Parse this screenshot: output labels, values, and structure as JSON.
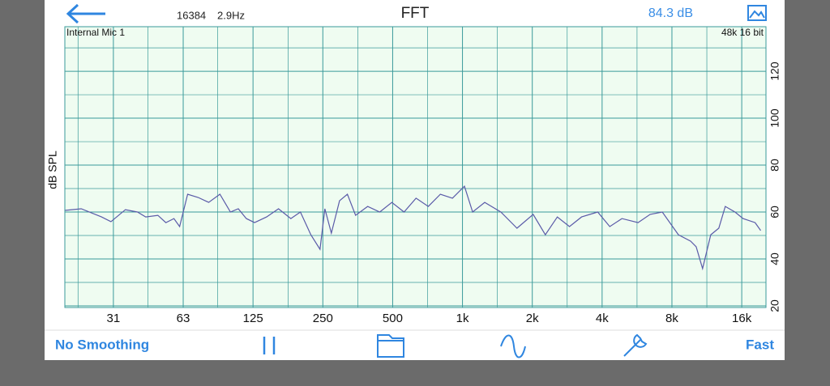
{
  "header": {
    "buffer_size": "16384",
    "resolution": "2.9Hz",
    "title": "FFT",
    "level": "84.3 dB"
  },
  "chart_data": {
    "type": "line",
    "input_label": "Internal Mic 1",
    "format_label": "48k 16 bit",
    "y_label": "dB SPL",
    "x_scale": "log",
    "grid": true,
    "x": [
      19.3,
      22.7,
      27.8,
      30.5,
      35.2,
      39.7,
      43.1,
      48.6,
      52.6,
      57.0,
      60.3,
      65.3,
      72.5,
      80.5,
      90.0,
      99.9,
      108,
      117,
      127,
      143,
      161,
      182,
      200,
      222,
      243,
      255,
      272,
      295,
      319,
      346,
      390,
      440,
      496,
      560,
      631,
      712,
      803,
      905,
      1020,
      1106,
      1247,
      1464,
      1718,
      2017,
      2276,
      2564,
      2893,
      3261,
      3828,
      4318,
      4869,
      5714,
      6446,
      7269,
      8534,
      9626,
      10180,
      10850,
      11760,
      12740,
      13590,
      14960,
      16200,
      18270,
      19320
    ],
    "series": [
      {
        "color": "#5a5aa8",
        "values": [
          60.7,
          61.4,
          57.9,
          55.9,
          61.0,
          60.0,
          57.9,
          58.6,
          55.5,
          57.2,
          53.8,
          67.6,
          66.2,
          64.1,
          67.6,
          60.0,
          61.4,
          57.2,
          55.5,
          57.9,
          61.4,
          57.2,
          60.0,
          50.3,
          44.1,
          61.4,
          51.0,
          64.8,
          67.6,
          58.6,
          62.4,
          60.0,
          64.1,
          60.0,
          65.9,
          62.4,
          67.6,
          65.9,
          71.0,
          60.0,
          64.1,
          60.0,
          53.1,
          59.0,
          50.3,
          57.9,
          53.8,
          57.9,
          60.0,
          53.8,
          57.2,
          55.5,
          59.0,
          60.0,
          50.3,
          47.6,
          45.2,
          35.9,
          50.3,
          53.1,
          62.4,
          60.0,
          57.2,
          55.5,
          52.1
        ]
      }
    ],
    "xlim": [
      19.3,
      20350
    ],
    "xticks": [
      {
        "value": 31.25,
        "label": "31"
      },
      {
        "value": 62.5,
        "label": "63"
      },
      125,
      250,
      500,
      {
        "value": 1000,
        "label": "1k"
      },
      {
        "value": 2000,
        "label": "2k"
      },
      {
        "value": 4000,
        "label": "4k"
      },
      {
        "value": 8000,
        "label": "8k"
      },
      {
        "value": 16000,
        "label": "16k"
      }
    ],
    "minor_xticks": [
      22,
      44,
      88,
      177,
      354,
      707,
      1414,
      2828,
      5657,
      11314
    ],
    "ylim": [
      19.3,
      139
    ],
    "yticks": [
      20,
      40,
      60,
      80,
      100,
      120
    ],
    "minor_yticks": [
      30,
      50,
      70,
      90,
      110,
      130
    ]
  },
  "toolbar": {
    "smoothing": "No Smoothing",
    "speed": "Fast"
  }
}
